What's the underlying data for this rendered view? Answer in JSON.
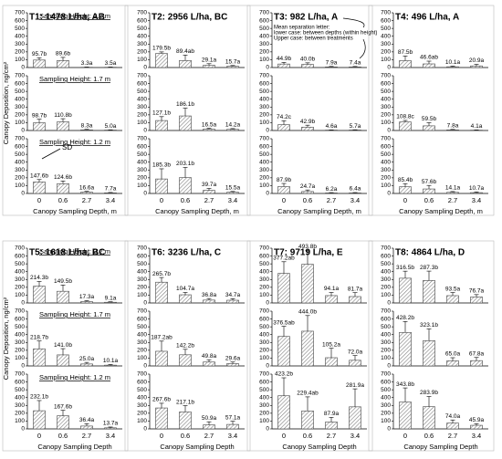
{
  "chart_data": [
    {
      "type": "bar",
      "title": "T1: 1478 L/ha, AB",
      "ylabel": "Canopy Deposition, ng/cm²",
      "xlabel": "Canopy Sampling Depth, m",
      "color": "#808080",
      "categories": [
        "0",
        "0.6",
        "2.7",
        "3.4"
      ],
      "ylim": [
        0,
        700
      ],
      "yticks": [
        0,
        100,
        200,
        300,
        400,
        500,
        600,
        700
      ],
      "annotations": [
        "SD"
      ],
      "panels": [
        {
          "label": "Sampling Height: 2.2 m",
          "values": [
            95.7,
            89.6,
            3.3,
            3.5
          ],
          "value_labels": [
            "95.7b",
            "89.6b",
            "3.3a",
            "3.5a"
          ],
          "errors": [
            30,
            40,
            3,
            3
          ]
        },
        {
          "label": "Sampling Height: 1.7 m",
          "values": [
            98.7,
            110.8,
            8.3,
            5.0
          ],
          "value_labels": [
            "98.7b",
            "110.8b",
            "8.3a",
            "5.0a"
          ],
          "errors": [
            45,
            40,
            6,
            4
          ]
        },
        {
          "label": "Sampling Height: 1.2 m",
          "values": [
            147.6,
            124.6,
            16.6,
            7.7
          ],
          "value_labels": [
            "147.6b",
            "124.6b",
            "16.6a",
            "7.7a"
          ],
          "errors": [
            30,
            35,
            10,
            5
          ]
        }
      ]
    },
    {
      "type": "bar",
      "title": "T2: 2956 L/ha, BC",
      "xlabel": "Canopy Sampling Depth, m",
      "color": "#808080",
      "categories": [
        "0",
        "0.6",
        "2.7",
        "3.4"
      ],
      "ylim": [
        0,
        700
      ],
      "yticks": [
        0,
        100,
        200,
        300,
        400,
        500,
        600,
        700
      ],
      "panels": [
        {
          "values": [
            179.5,
            89.4,
            29.1,
            15.7
          ],
          "value_labels": [
            "179.5b",
            "89.4ab",
            "29.1a",
            "15.7a"
          ],
          "errors": [
            20,
            70,
            20,
            10
          ]
        },
        {
          "values": [
            127.1,
            186.1,
            16.5,
            14.2
          ],
          "value_labels": [
            "127.1b",
            "186.1b",
            "16.5a",
            "14.2a"
          ],
          "errors": [
            50,
            100,
            12,
            10
          ]
        },
        {
          "values": [
            185.3,
            203.1,
            39.7,
            15.5
          ],
          "value_labels": [
            "185.3b",
            "203.1b",
            "39.7a",
            "15.5a"
          ],
          "errors": [
            130,
            130,
            25,
            10
          ]
        }
      ]
    },
    {
      "type": "bar",
      "title": "T3: 982 L/ha, A",
      "xlabel": "Canopy Sampling Depth, m",
      "color": "#808080",
      "categories": [
        "0",
        "0.6",
        "2.7",
        "3.4"
      ],
      "ylim": [
        0,
        700
      ],
      "yticks": [
        0,
        100,
        200,
        300,
        400,
        500,
        600,
        700
      ],
      "annotations": [
        "Mean separation letter:",
        "lower case: between depths (within height)",
        "Upper case: between treatments"
      ],
      "panels": [
        {
          "values": [
            44.9,
            40.0,
            7.9,
            7.4
          ],
          "value_labels": [
            "44.9b",
            "40.0b",
            "7.9a",
            "7.4a"
          ],
          "errors": [
            20,
            20,
            6,
            6
          ]
        },
        {
          "values": [
            74.2,
            42.9,
            4.6,
            5.7
          ],
          "value_labels": [
            "74.2c",
            "42.9b",
            "4.6a",
            "5.7a"
          ],
          "errors": [
            50,
            25,
            3,
            4
          ]
        },
        {
          "values": [
            87.9,
            24.7,
            6.2,
            6.4
          ],
          "value_labels": [
            "87.9b",
            "24.7a",
            "6.2a",
            "6.4a"
          ],
          "errors": [
            40,
            20,
            5,
            5
          ]
        }
      ]
    },
    {
      "type": "bar",
      "title": "T4: 496 L/ha, A",
      "xlabel": "Canopy Sampling Depth, m",
      "color": "#808080",
      "categories": [
        "0",
        "0.6",
        "2.7",
        "3.4"
      ],
      "ylim": [
        0,
        700
      ],
      "yticks": [
        0,
        100,
        200,
        300,
        400,
        500,
        600,
        700
      ],
      "panels": [
        {
          "values": [
            87.5,
            46.6,
            10.1,
            20.9
          ],
          "value_labels": [
            "87.5b",
            "46.6ab",
            "10.1a",
            "20.9a"
          ],
          "errors": [
            60,
            35,
            8,
            20
          ]
        },
        {
          "values": [
            108.8,
            59.5,
            7.8,
            4.1
          ],
          "value_labels": [
            "108.8c",
            "59.5b",
            "7.8a",
            "4.1a"
          ],
          "errors": [
            20,
            40,
            6,
            3
          ]
        },
        {
          "values": [
            85.4,
            57.6,
            14.1,
            10.7
          ],
          "value_labels": [
            "85.4b",
            "57.6b",
            "14.1a",
            "10.7a"
          ],
          "errors": [
            40,
            45,
            10,
            8
          ]
        }
      ]
    },
    {
      "type": "bar",
      "title": "T5: 1618 L/ha, BC",
      "ylabel": "Canopy Deposition, ng/cm²",
      "xlabel": "Canopy Sampling Depth",
      "color": "#808080",
      "categories": [
        "0",
        "0.6",
        "2.7",
        "3.4"
      ],
      "ylim": [
        0,
        700
      ],
      "yticks": [
        0,
        100,
        200,
        300,
        400,
        500,
        600,
        700
      ],
      "panels": [
        {
          "label": "Sampling Height: 2.2 m",
          "values": [
            214.3,
            149.5,
            17.3,
            9.1
          ],
          "value_labels": [
            "214.3b",
            "149.5b",
            "17.3a",
            "9.1a"
          ],
          "errors": [
            60,
            80,
            12,
            6
          ]
        },
        {
          "label": "Sampling Height: 1.7 m",
          "values": [
            218.7,
            141.0,
            25.0,
            10.1
          ],
          "value_labels": [
            "218.7b",
            "141.0b",
            "25.0a",
            "10.1a"
          ],
          "errors": [
            100,
            80,
            20,
            8
          ]
        },
        {
          "label": "Sampling Height: 1.2 m",
          "values": [
            232.1,
            167.6,
            36.4,
            13.7
          ],
          "value_labels": [
            "232.1b",
            "167.6b",
            "36.4a",
            "13.7a"
          ],
          "errors": [
            130,
            70,
            30,
            10
          ]
        }
      ]
    },
    {
      "type": "bar",
      "title": "T6: 3236 L/ha, C",
      "xlabel": "Canopy Sampling Depth",
      "color": "#808080",
      "categories": [
        "0",
        "0.6",
        "2.7",
        "3.4"
      ],
      "ylim": [
        0,
        700
      ],
      "yticks": [
        0,
        100,
        200,
        300,
        400,
        500,
        600,
        700
      ],
      "panels": [
        {
          "values": [
            265.7,
            104.7,
            36.8,
            34.7
          ],
          "value_labels": [
            "265.7b",
            "104.7a",
            "36.8a",
            "34.7a"
          ],
          "errors": [
            60,
            30,
            20,
            20
          ]
        },
        {
          "values": [
            187.2,
            142.2,
            49.8,
            29.6
          ],
          "value_labels": [
            "187.2ab",
            "142.2b",
            "49.8a",
            "29.6a"
          ],
          "errors": [
            130,
            70,
            30,
            20
          ]
        },
        {
          "values": [
            267.6,
            217.1,
            50.9,
            57.1
          ],
          "value_labels": [
            "267.6b",
            "217.1b",
            "50.9a",
            "57.1a"
          ],
          "errors": [
            60,
            80,
            40,
            40
          ]
        }
      ]
    },
    {
      "type": "bar",
      "title": "T7: 9719 L/ha, E",
      "xlabel": "Canopy Sampling Depth",
      "color": "#808080",
      "categories": [
        "0",
        "0.6",
        "2.7",
        "3.4"
      ],
      "ylim": [
        0,
        700
      ],
      "yticks": [
        0,
        100,
        200,
        300,
        400,
        500,
        600,
        700
      ],
      "panels": [
        {
          "values": [
            377.2,
            493.8,
            94.1,
            81.7
          ],
          "value_labels": [
            "377.2ab",
            "493.8b",
            "94.1a",
            "81.7a"
          ],
          "errors": [
            150,
            180,
            40,
            50
          ]
        },
        {
          "values": [
            376.5,
            444.0,
            105.2,
            72.0
          ],
          "value_labels": [
            "376.5ab",
            "444.0b",
            "105.2a",
            "72.0a"
          ],
          "errors": [
            130,
            200,
            120,
            60
          ]
        },
        {
          "values": [
            423.2,
            229.4,
            87.9,
            281.9
          ],
          "value_labels": [
            "423.2b",
            "229.4ab",
            "87.9a",
            "281.9a"
          ],
          "errors": [
            230,
            180,
            60,
            230
          ]
        }
      ]
    },
    {
      "type": "bar",
      "title": "T8: 4864 L/ha, D",
      "xlabel": "Canopy Sampling Depth",
      "color": "#808080",
      "categories": [
        "0",
        "0.6",
        "2.7",
        "3.4"
      ],
      "ylim": [
        0,
        700
      ],
      "yticks": [
        0,
        100,
        200,
        300,
        400,
        500,
        600,
        700
      ],
      "panels": [
        {
          "values": [
            316.5,
            287.3,
            93.5,
            76.7
          ],
          "value_labels": [
            "316.5b",
            "287.3b",
            "93.5a",
            "76.7a"
          ],
          "errors": [
            90,
            120,
            40,
            30
          ]
        },
        {
          "values": [
            428.2,
            323.1,
            65.0,
            67.8
          ],
          "value_labels": [
            "428.2b",
            "323.1b",
            "65.0a",
            "67.8a"
          ],
          "errors": [
            140,
            150,
            40,
            40
          ]
        },
        {
          "values": [
            343.8,
            283.9,
            74.0,
            45.9
          ],
          "value_labels": [
            "343.8b",
            "283.9b",
            "74.0a",
            "45.9a"
          ],
          "errors": [
            180,
            130,
            40,
            20
          ]
        }
      ]
    }
  ]
}
